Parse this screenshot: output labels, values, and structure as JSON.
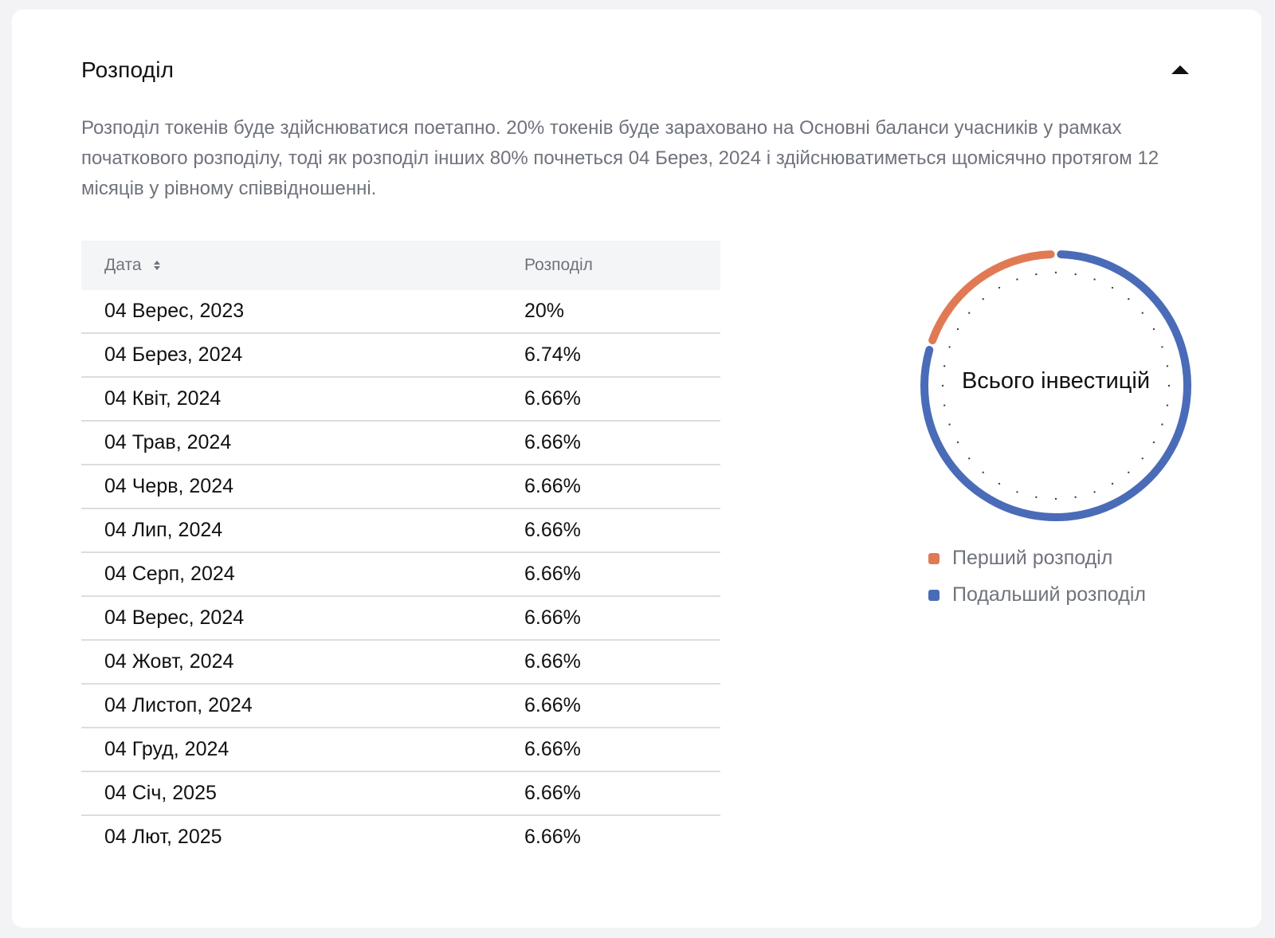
{
  "section": {
    "title": "Розподіл",
    "collapse_icon": "caret-up-icon",
    "description": "Розподіл токенів буде здійснюватися поетапно. 20% токенів буде зараховано на Основні баланси учасників у рамках початкового розподілу, тоді як розподіл інших 80% почнеться 04 Берез, 2024 і здійснюватиметься щомісячно протягом 12 місяців у рівному співвідношенні."
  },
  "table": {
    "headers": {
      "date": "Дата",
      "distribution": "Розподіл"
    },
    "sort_icon": "sort-icon",
    "rows": [
      {
        "date": "04 Верес, 2023",
        "distribution": "20%"
      },
      {
        "date": "04 Берез, 2024",
        "distribution": "6.74%"
      },
      {
        "date": "04 Квіт, 2024",
        "distribution": "6.66%"
      },
      {
        "date": "04 Трав, 2024",
        "distribution": "6.66%"
      },
      {
        "date": "04 Черв, 2024",
        "distribution": "6.66%"
      },
      {
        "date": "04 Лип, 2024",
        "distribution": "6.66%"
      },
      {
        "date": "04 Серп, 2024",
        "distribution": "6.66%"
      },
      {
        "date": "04 Верес, 2024",
        "distribution": "6.66%"
      },
      {
        "date": "04 Жовт, 2024",
        "distribution": "6.66%"
      },
      {
        "date": "04 Листоп, 2024",
        "distribution": "6.66%"
      },
      {
        "date": "04 Груд, 2024",
        "distribution": "6.66%"
      },
      {
        "date": "04 Січ, 2025",
        "distribution": "6.66%"
      },
      {
        "date": "04 Лют, 2025",
        "distribution": "6.66%"
      }
    ]
  },
  "chart_data": {
    "type": "pie",
    "center_label": "Всього інвестицій",
    "categories": [
      "Перший розподіл",
      "Подальший розподіл"
    ],
    "values": [
      20,
      80
    ],
    "colors": [
      "#e07a55",
      "#4a6cb8"
    ],
    "legend_position": "bottom"
  }
}
